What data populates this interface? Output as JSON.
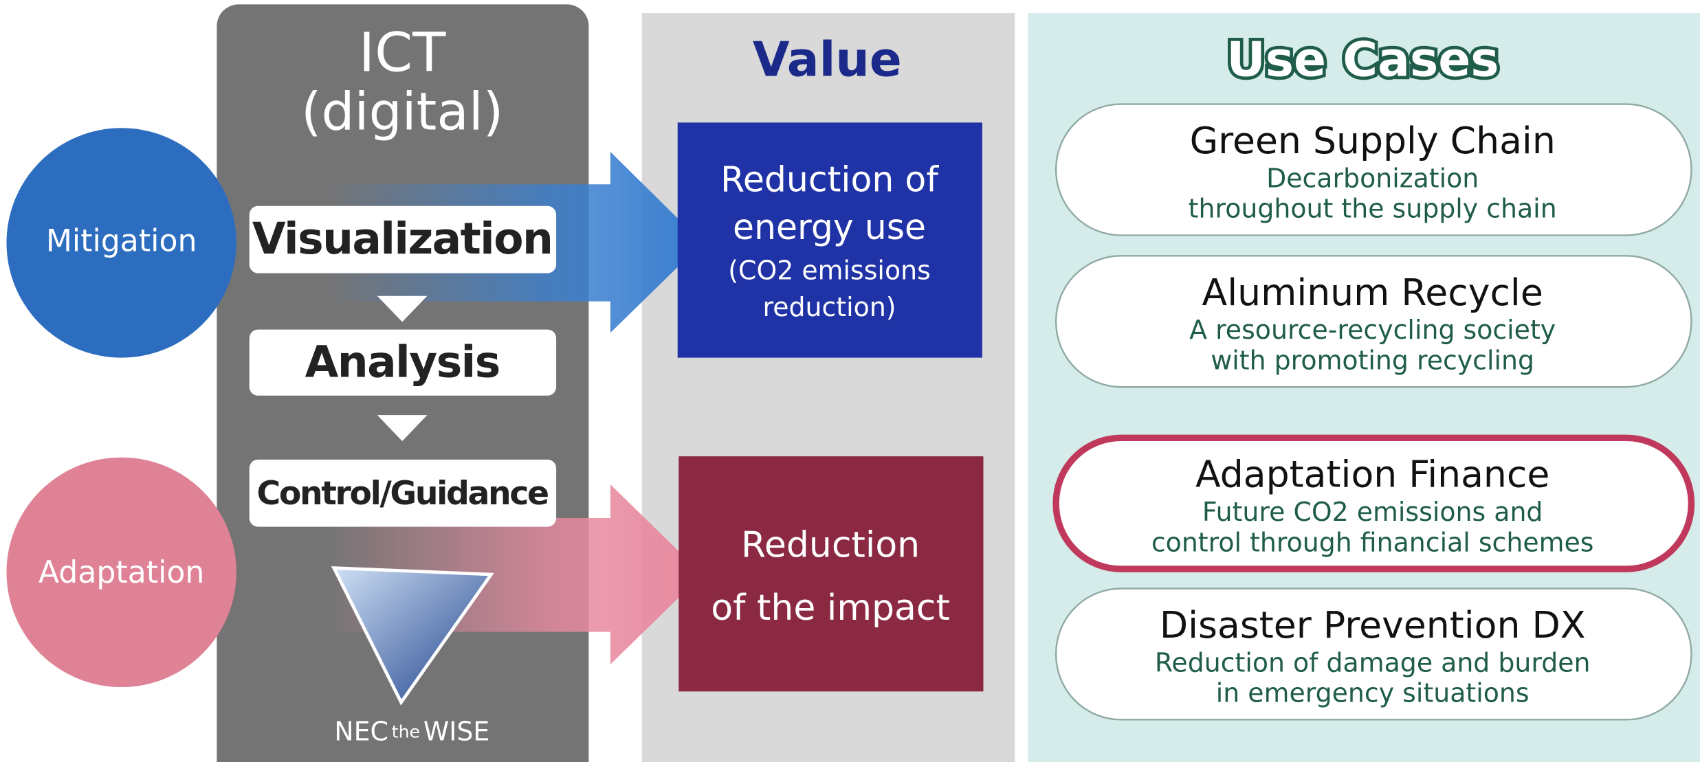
{
  "left": {
    "mitigation": "Mitigation",
    "adaptation": "Adaptation"
  },
  "ict": {
    "title_line1": "ICT",
    "title_line2": "(digital)",
    "steps": [
      "Visualization",
      "Analysis",
      "Control/Guidance"
    ],
    "logo": [
      "NEC",
      "the",
      "WISE"
    ]
  },
  "value": {
    "title": "Value",
    "boxes": [
      {
        "lines": [
          "Reduction of",
          "energy use"
        ],
        "sub": [
          "(CO2 emissions",
          "reduction)"
        ]
      },
      {
        "lines": [
          "Reduction",
          "of the impact"
        ]
      }
    ]
  },
  "use_cases": {
    "title": "Use Cases",
    "items": [
      {
        "title": "Green Supply Chain",
        "lines": [
          "Decarbonization",
          "throughout the supply chain"
        ]
      },
      {
        "title": "Aluminum Recycle",
        "lines": [
          "A resource-recycling society",
          "with promoting recycling"
        ]
      },
      {
        "title": "Adaptation Finance",
        "lines": [
          "Future CO2 emissions and",
          "control through financial schemes"
        ]
      },
      {
        "title": "Disaster Prevention DX",
        "lines": [
          "Reduction of damage and burden",
          "in emergency situations"
        ]
      }
    ]
  }
}
